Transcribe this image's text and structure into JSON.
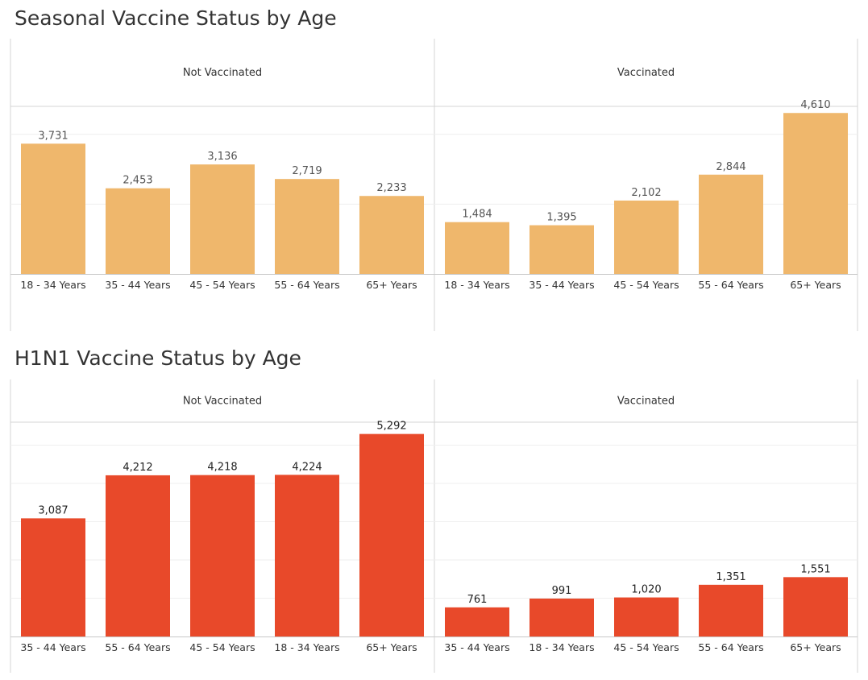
{
  "chart_data": [
    {
      "type": "bar",
      "title": "Seasonal Vaccine Status by Age",
      "color": "#EFB76C",
      "label_color": "#555555",
      "ymax": 4800,
      "gridlines": [
        2000,
        4000
      ],
      "panels": [
        {
          "header": "Not Vaccinated",
          "categories": [
            "18 - 34 Years",
            "35 - 44 Years",
            "45 - 54 Years",
            "55 - 64 Years",
            "65+ Years"
          ],
          "values": [
            3731,
            2453,
            3136,
            2719,
            2233
          ],
          "value_labels": [
            "3,731",
            "2,453",
            "3,136",
            "2,719",
            "2,233"
          ]
        },
        {
          "header": "Vaccinated",
          "categories": [
            "18 - 34 Years",
            "35 - 44 Years",
            "45 - 54 Years",
            "55 - 64 Years",
            "65+ Years"
          ],
          "values": [
            1484,
            1395,
            2102,
            2844,
            4610
          ],
          "value_labels": [
            "1,484",
            "1,395",
            "2,102",
            "2,844",
            "4,610"
          ]
        }
      ]
    },
    {
      "type": "bar",
      "title": "H1N1 Vaccine Status by Age",
      "color": "#E8492A",
      "label_color": "#222222",
      "ymax": 5600,
      "gridlines": [
        1000,
        2000,
        3000,
        4000,
        5000
      ],
      "panels": [
        {
          "header": "Not Vaccinated",
          "categories": [
            "35 - 44 Years",
            "55 - 64 Years",
            "45 - 54 Years",
            "18 - 34 Years",
            "65+ Years"
          ],
          "values": [
            3087,
            4212,
            4218,
            4224,
            5292
          ],
          "value_labels": [
            "3,087",
            "4,212",
            "4,218",
            "4,224",
            "5,292"
          ]
        },
        {
          "header": "Vaccinated",
          "categories": [
            "35 - 44 Years",
            "18 - 34 Years",
            "45 - 54 Years",
            "55 - 64 Years",
            "65+ Years"
          ],
          "values": [
            761,
            991,
            1020,
            1351,
            1551
          ],
          "value_labels": [
            "761",
            "991",
            "1,020",
            "1,351",
            "1,551"
          ]
        }
      ]
    }
  ]
}
